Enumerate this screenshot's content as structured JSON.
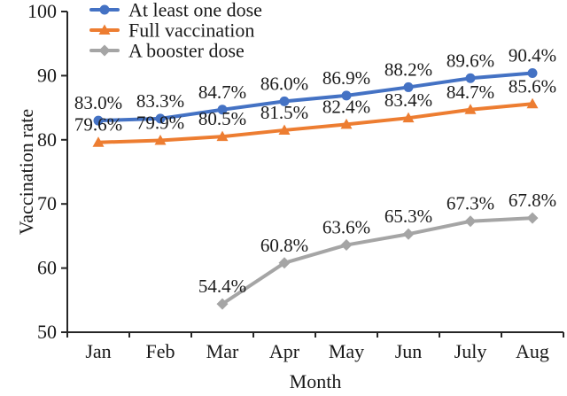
{
  "chart_data": {
    "type": "line",
    "title": "",
    "xlabel": "Month",
    "ylabel": "Vaccination rate",
    "categories": [
      "Jan",
      "Feb",
      "Mar",
      "Apr",
      "May",
      "Jun",
      "July",
      "Aug"
    ],
    "ylim": [
      50,
      100
    ],
    "yticks": [
      50,
      60,
      70,
      80,
      90,
      100
    ],
    "grid": false,
    "legend_position": "top-left-inside",
    "axis_color": "#262626",
    "text_color": "#1a1a1a",
    "series": [
      {
        "name": "At least one dose",
        "color": "#4472C4",
        "marker": "circle",
        "values": [
          83.0,
          83.3,
          84.7,
          86.0,
          86.9,
          88.2,
          89.6,
          90.4
        ],
        "labels": [
          "83.0%",
          "83.3%",
          "84.7%",
          "86.0%",
          "86.9%",
          "88.2%",
          "89.6%",
          "90.4%"
        ]
      },
      {
        "name": "Full vaccination",
        "color": "#ED7D31",
        "marker": "triangle",
        "values": [
          79.6,
          79.9,
          80.5,
          81.5,
          82.4,
          83.4,
          84.7,
          85.6
        ],
        "labels": [
          "79.6%",
          "79.9%",
          "80.5%",
          "81.5%",
          "82.4%",
          "83.4%",
          "84.7%",
          "85.6%"
        ]
      },
      {
        "name": "A booster dose",
        "color": "#A5A5A5",
        "marker": "diamond",
        "values": [
          null,
          null,
          54.4,
          60.8,
          63.6,
          65.3,
          67.3,
          67.8
        ],
        "labels": [
          null,
          null,
          "54.4%",
          "60.8%",
          "63.6%",
          "65.3%",
          "67.3%",
          "67.8%"
        ]
      }
    ]
  }
}
